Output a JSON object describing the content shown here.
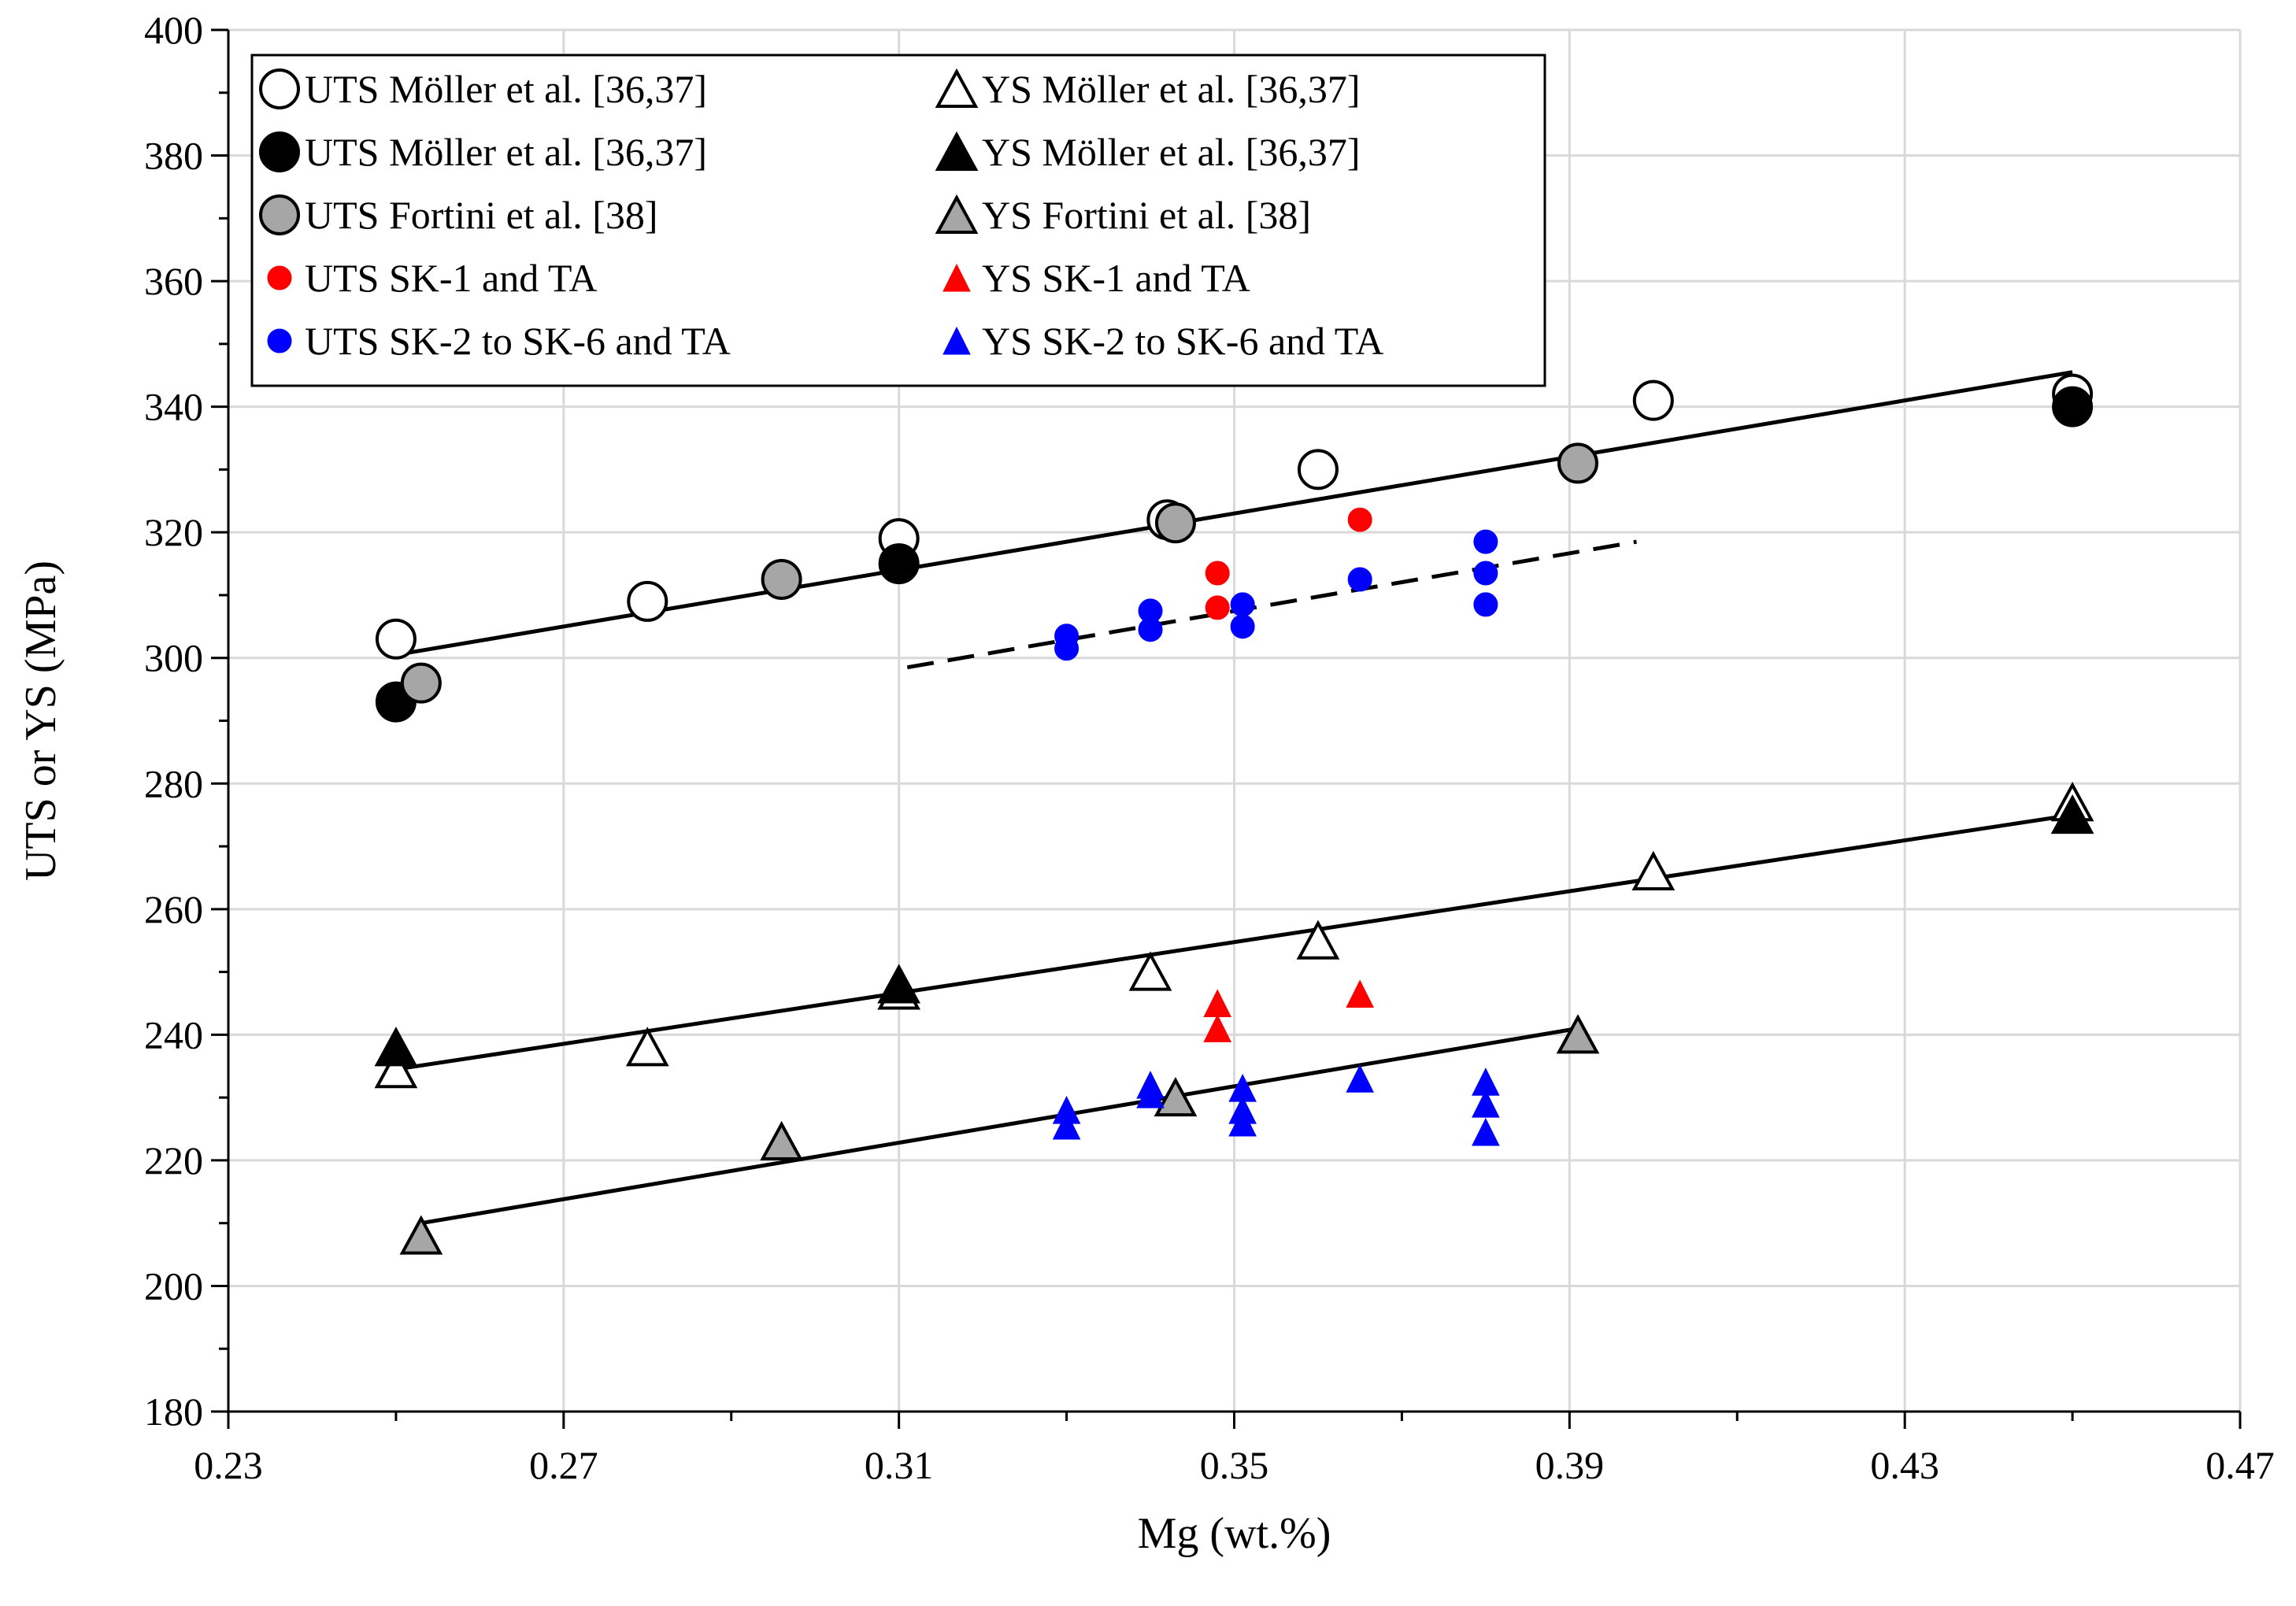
{
  "chart_data": {
    "type": "scatter",
    "xlabel": "Mg (wt.%)",
    "ylabel": "UTS or YS (MPa)",
    "xlim": [
      0.23,
      0.47
    ],
    "ylim": [
      180,
      400
    ],
    "x_ticks": [
      0.23,
      0.27,
      0.31,
      0.35,
      0.39,
      0.43,
      0.47
    ],
    "x_tick_labels": [
      "0.23",
      "0.27",
      "0.31",
      "0.35",
      "0.39",
      "0.43",
      "0.47"
    ],
    "y_ticks": [
      180,
      200,
      220,
      240,
      260,
      280,
      300,
      320,
      340,
      360,
      380,
      400
    ],
    "y_tick_labels": [
      "180",
      "200",
      "220",
      "240",
      "260",
      "280",
      "300",
      "320",
      "340",
      "360",
      "380",
      "400"
    ],
    "grid": true,
    "legend_position": "top-left",
    "series": [
      {
        "name": "UTS Möller et al. [36,37]",
        "marker": "circle",
        "fill": "#ffffff",
        "stroke": "#000000",
        "size": "large",
        "x": [
          0.25,
          0.28,
          0.31,
          0.342,
          0.36,
          0.4,
          0.45
        ],
        "y": [
          303,
          309,
          319,
          322,
          330,
          341,
          342
        ]
      },
      {
        "name": "UTS Möller et al. [36,37]",
        "marker": "circle",
        "fill": "#000000",
        "stroke": "#000000",
        "size": "large",
        "x": [
          0.25,
          0.31,
          0.45
        ],
        "y": [
          293,
          315,
          340
        ]
      },
      {
        "name": "UTS Fortini et al. [38]",
        "marker": "circle",
        "fill": "#a6a6a6",
        "stroke": "#000000",
        "size": "large",
        "x": [
          0.253,
          0.296,
          0.343,
          0.391
        ],
        "y": [
          296,
          312.5,
          321.5,
          331
        ]
      },
      {
        "name": "UTS SK-1 and TA",
        "marker": "circle",
        "fill": "#ff0000",
        "stroke": "#ff0000",
        "size": "small",
        "x": [
          0.348,
          0.348,
          0.365
        ],
        "y": [
          313.5,
          308,
          322
        ]
      },
      {
        "name": "UTS SK-2 to SK-6 and TA",
        "marker": "circle",
        "fill": "#0000ff",
        "stroke": "#0000ff",
        "size": "small",
        "x": [
          0.33,
          0.33,
          0.34,
          0.34,
          0.351,
          0.351,
          0.365,
          0.38,
          0.38,
          0.38
        ],
        "y": [
          303.5,
          301.5,
          307.5,
          304.5,
          308.5,
          305,
          312.5,
          318.5,
          313.5,
          308.5
        ]
      },
      {
        "name": "YS Möller et al. [36,37]",
        "marker": "triangle",
        "fill": "#ffffff",
        "stroke": "#000000",
        "size": "large",
        "x": [
          0.25,
          0.28,
          0.31,
          0.34,
          0.36,
          0.4,
          0.45
        ],
        "y": [
          234.5,
          238,
          247,
          250,
          255,
          266,
          277
        ]
      },
      {
        "name": "YS Möller et al. [36,37]",
        "marker": "triangle",
        "fill": "#000000",
        "stroke": "#000000",
        "size": "large",
        "x": [
          0.25,
          0.31,
          0.45
        ],
        "y": [
          238,
          248,
          275
        ]
      },
      {
        "name": "YS Fortini et al. [38]",
        "marker": "triangle",
        "fill": "#a6a6a6",
        "stroke": "#000000",
        "size": "large",
        "x": [
          0.253,
          0.296,
          0.343,
          0.391
        ],
        "y": [
          208,
          223,
          230,
          240
        ]
      },
      {
        "name": "YS SK-1 and TA",
        "marker": "triangle",
        "fill": "#ff0000",
        "stroke": "#ff0000",
        "size": "small",
        "x": [
          0.348,
          0.348,
          0.365
        ],
        "y": [
          245,
          241,
          246.5
        ]
      },
      {
        "name": "YS SK-2 to SK-6 and TA",
        "marker": "triangle",
        "fill": "#0000ff",
        "stroke": "#0000ff",
        "size": "small",
        "x": [
          0.33,
          0.33,
          0.34,
          0.34,
          0.351,
          0.351,
          0.351,
          0.365,
          0.38,
          0.38,
          0.38
        ],
        "y": [
          228,
          225.5,
          232,
          230.5,
          231.5,
          228,
          226,
          233,
          232.5,
          229,
          224.5
        ]
      }
    ],
    "trendlines": [
      {
        "x": [
          0.25,
          0.45
        ],
        "y": [
          300.5,
          345.5
        ],
        "style": "solid"
      },
      {
        "x": [
          0.311,
          0.398
        ],
        "y": [
          298.5,
          318.5
        ],
        "style": "dashed"
      },
      {
        "x": [
          0.25,
          0.45
        ],
        "y": [
          234.5,
          275
        ],
        "style": "solid"
      },
      {
        "x": [
          0.253,
          0.391
        ],
        "y": [
          210,
          241
        ],
        "style": "solid"
      }
    ]
  }
}
